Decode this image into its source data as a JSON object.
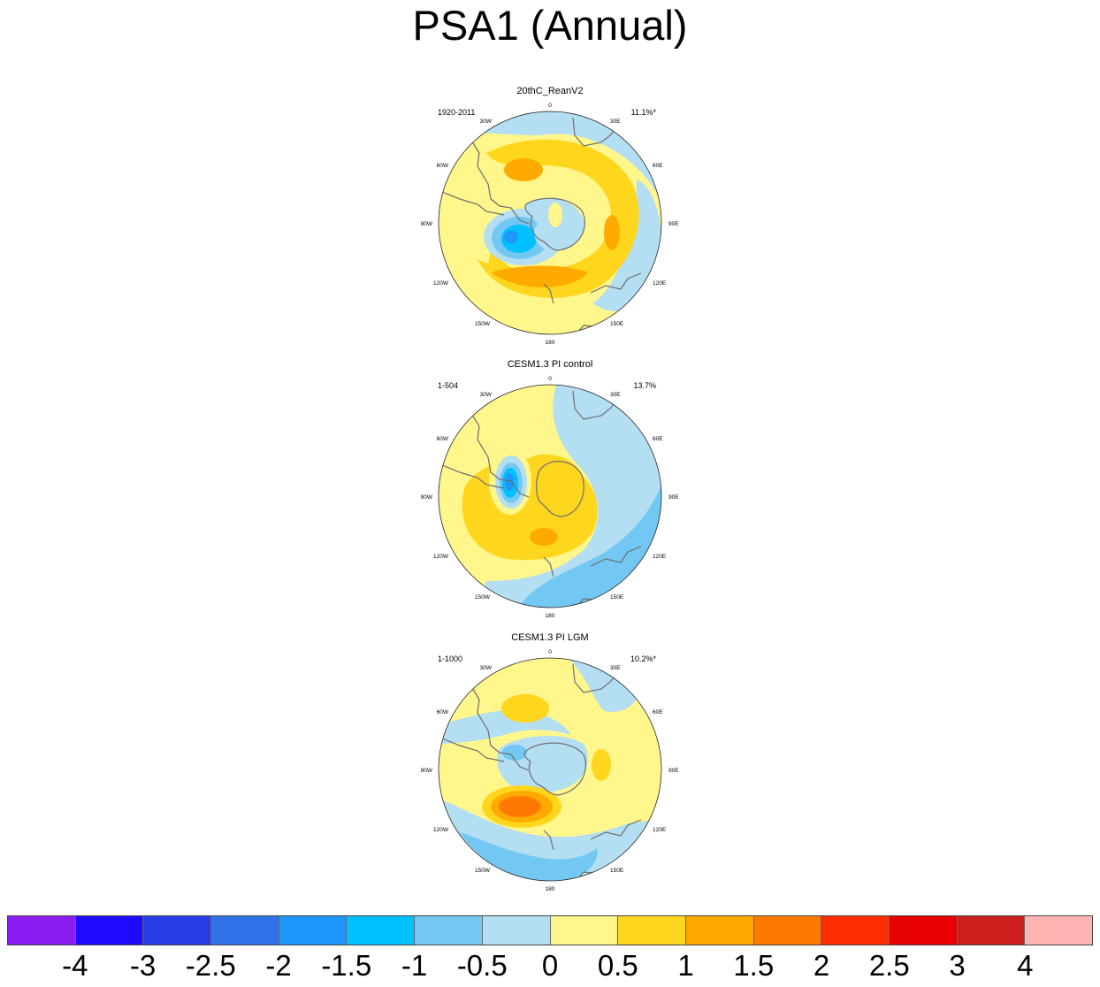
{
  "title": "PSA1 (Annual)",
  "panels": [
    {
      "name": "20thC_ReanV2",
      "period": "1920-2011",
      "variance": "11.1%*"
    },
    {
      "name": "CESM1.3 PI control",
      "period": "1-504",
      "variance": "13.7%"
    },
    {
      "name": "CESM1.3 PI LGM",
      "period": "1-1000",
      "variance": "10.2%*"
    }
  ],
  "longitude_labels": [
    "0",
    "30E",
    "60E",
    "90E",
    "120E",
    "150E",
    "180",
    "150W",
    "120W",
    "90W",
    "60W",
    "30W"
  ],
  "colorbar": {
    "colors": [
      "#8a1ef0",
      "#1e0aff",
      "#2a3ce6",
      "#3272e8",
      "#1e96fa",
      "#00c0ff",
      "#72c8f2",
      "#b4def2",
      "#fff68c",
      "#ffd61e",
      "#ffaa00",
      "#ff7800",
      "#ff2d00",
      "#e60000",
      "#cd1e1e",
      "#ffb4b4"
    ],
    "tick_labels": [
      "-4",
      "-3",
      "-2.5",
      "-2",
      "-1.5",
      "-1",
      "-0.5",
      "0",
      "0.5",
      "1",
      "1.5",
      "2",
      "2.5",
      "3",
      "4"
    ]
  }
}
